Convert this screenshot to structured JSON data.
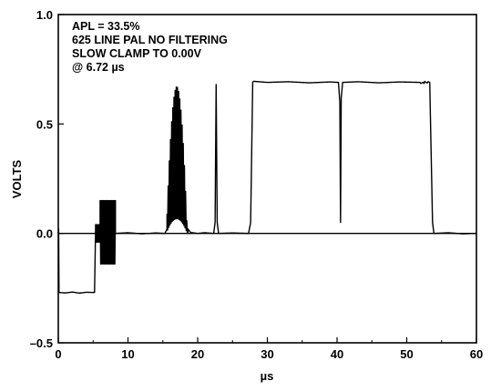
{
  "chart_data": {
    "type": "line",
    "title": "",
    "xlabel": "µs",
    "ylabel": "VOLTS",
    "xlim": [
      0,
      60
    ],
    "ylim": [
      -0.5,
      1.0
    ],
    "x_ticks": [
      0,
      10,
      20,
      30,
      40,
      50,
      60
    ],
    "x_tick_labels": [
      "0",
      "10",
      "20",
      "30",
      "40",
      "50",
      "60"
    ],
    "y_ticks": [
      -0.5,
      0.0,
      0.5,
      1.0
    ],
    "y_tick_labels": [
      "–0.5",
      "0.0",
      "0.5",
      "1.0"
    ],
    "grid": false,
    "legend": "none",
    "line_color": "#000000",
    "zero_line": true,
    "annotation_lines": [
      "APL = 33.5%",
      "625 LINE PAL     NO FILTERING",
      "SLOW CLAMP TO 0.00V",
      "@ 6.72 µs"
    ],
    "series": [
      {
        "segments": [
          {
            "kind": "line",
            "points": [
              [
                0,
                0.0
              ],
              [
                0.05,
                0.02
              ],
              [
                0.1,
                -0.27
              ],
              [
                1,
                -0.272
              ],
              [
                2,
                -0.268
              ],
              [
                3,
                -0.273
              ],
              [
                4,
                -0.269
              ],
              [
                5.0,
                -0.27
              ],
              [
                5.2,
                -0.27
              ],
              [
                5.35,
                0.02
              ]
            ]
          },
          {
            "kind": "burst",
            "x_start": 5.35,
            "x_end": 6.0,
            "high": 0.04,
            "low": -0.04,
            "cycles": 4
          },
          {
            "kind": "burst",
            "x_start": 6.0,
            "x_end": 8.2,
            "high": 0.15,
            "low": -0.14,
            "cycles": 13
          },
          {
            "kind": "line",
            "points": [
              [
                8.2,
                0.0
              ],
              [
                10,
                0.003
              ],
              [
                12,
                -0.002
              ],
              [
                14,
                0.002
              ],
              [
                15.3,
                0.0
              ],
              [
                15.6,
                0.02
              ]
            ]
          },
          {
            "kind": "burst_envelope",
            "x_start": 15.6,
            "x_end": 18.6,
            "center": 17.0,
            "peak": 0.67,
            "low": 0.0,
            "cycles": 18
          },
          {
            "kind": "line",
            "points": [
              [
                18.6,
                0.02
              ],
              [
                19,
                0.004
              ],
              [
                20,
                0.0
              ],
              [
                21,
                0.003
              ],
              [
                22.3,
                0.0
              ],
              [
                22.5,
                0.05
              ],
              [
                22.65,
                0.68
              ],
              [
                22.8,
                0.05
              ],
              [
                23.0,
                0.0
              ],
              [
                25,
                0.002
              ],
              [
                27.3,
                0.0
              ],
              [
                27.6,
                0.05
              ],
              [
                27.9,
                0.69
              ],
              [
                28,
                0.695
              ],
              [
                30,
                0.69
              ],
              [
                33,
                0.693
              ],
              [
                36,
                0.688
              ],
              [
                39,
                0.692
              ],
              [
                40.2,
                0.69
              ],
              [
                40.4,
                0.6
              ],
              [
                40.5,
                0.05
              ],
              [
                40.6,
                0.62
              ],
              [
                40.8,
                0.69
              ],
              [
                43,
                0.693
              ],
              [
                46,
                0.688
              ],
              [
                49,
                0.692
              ],
              [
                52,
                0.69
              ],
              [
                53.3,
                0.69
              ],
              [
                53.7,
                0.05
              ],
              [
                53.9,
                0.0
              ],
              [
                56,
                0.003
              ],
              [
                58,
                -0.002
              ],
              [
                60,
                0.0
              ]
            ]
          }
        ]
      }
    ]
  }
}
